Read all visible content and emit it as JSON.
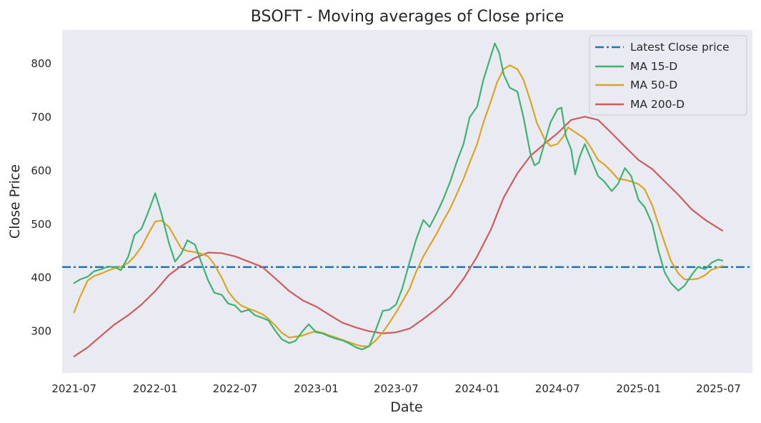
{
  "chart_data": {
    "type": "line",
    "title": "BSOFT - Moving averages of Close price",
    "xlabel": "Date",
    "ylabel": "Close Price",
    "xlim": [
      "2021-06-04",
      "2025-09-16"
    ],
    "ylim": [
      222,
      863
    ],
    "grid": false,
    "legend_position": "top-right",
    "x_ticks": [
      "2021-07",
      "2022-01",
      "2022-07",
      "2023-01",
      "2023-07",
      "2024-01",
      "2024-07",
      "2025-01",
      "2025-07"
    ],
    "y_ticks": [
      300,
      400,
      500,
      600,
      700,
      800
    ],
    "reference_line": {
      "name": "Latest Close price",
      "value": 420,
      "color": "#1f77b4",
      "style": "dash-dot"
    },
    "series": [
      {
        "name": "MA 15-D",
        "color": "#3cb371",
        "points": [
          [
            "2021-07-01",
            390
          ],
          [
            "2021-07-15",
            397
          ],
          [
            "2021-08-01",
            402
          ],
          [
            "2021-08-15",
            412
          ],
          [
            "2021-09-01",
            416
          ],
          [
            "2021-09-15",
            421
          ],
          [
            "2021-10-01",
            420
          ],
          [
            "2021-10-15",
            414
          ],
          [
            "2021-11-01",
            440
          ],
          [
            "2021-11-15",
            480
          ],
          [
            "2021-12-01",
            492
          ],
          [
            "2021-12-15",
            520
          ],
          [
            "2022-01-01",
            558
          ],
          [
            "2022-01-15",
            520
          ],
          [
            "2022-02-01",
            465
          ],
          [
            "2022-02-15",
            430
          ],
          [
            "2022-03-01",
            445
          ],
          [
            "2022-03-15",
            470
          ],
          [
            "2022-04-01",
            462
          ],
          [
            "2022-04-15",
            430
          ],
          [
            "2022-05-01",
            395
          ],
          [
            "2022-05-15",
            372
          ],
          [
            "2022-06-01",
            368
          ],
          [
            "2022-06-15",
            352
          ],
          [
            "2022-07-01",
            348
          ],
          [
            "2022-07-15",
            336
          ],
          [
            "2022-08-01",
            340
          ],
          [
            "2022-08-15",
            330
          ],
          [
            "2022-09-01",
            325
          ],
          [
            "2022-09-15",
            320
          ],
          [
            "2022-10-01",
            300
          ],
          [
            "2022-10-15",
            285
          ],
          [
            "2022-11-01",
            278
          ],
          [
            "2022-11-15",
            282
          ],
          [
            "2022-12-01",
            300
          ],
          [
            "2022-12-15",
            313
          ],
          [
            "2023-01-01",
            298
          ],
          [
            "2023-01-15",
            296
          ],
          [
            "2023-02-01",
            290
          ],
          [
            "2023-02-15",
            286
          ],
          [
            "2023-03-01",
            283
          ],
          [
            "2023-03-15",
            278
          ],
          [
            "2023-04-01",
            270
          ],
          [
            "2023-04-15",
            266
          ],
          [
            "2023-05-01",
            272
          ],
          [
            "2023-05-15",
            300
          ],
          [
            "2023-06-01",
            338
          ],
          [
            "2023-06-15",
            340
          ],
          [
            "2023-07-01",
            350
          ],
          [
            "2023-07-15",
            380
          ],
          [
            "2023-08-01",
            430
          ],
          [
            "2023-08-15",
            470
          ],
          [
            "2023-09-01",
            508
          ],
          [
            "2023-09-15",
            495
          ],
          [
            "2023-10-01",
            520
          ],
          [
            "2023-10-15",
            545
          ],
          [
            "2023-11-01",
            580
          ],
          [
            "2023-11-15",
            615
          ],
          [
            "2023-12-01",
            650
          ],
          [
            "2023-12-15",
            700
          ],
          [
            "2024-01-01",
            720
          ],
          [
            "2024-01-15",
            770
          ],
          [
            "2024-02-01",
            815
          ],
          [
            "2024-02-10",
            838
          ],
          [
            "2024-02-20",
            820
          ],
          [
            "2024-03-01",
            780
          ],
          [
            "2024-03-15",
            755
          ],
          [
            "2024-04-01",
            748
          ],
          [
            "2024-04-15",
            700
          ],
          [
            "2024-05-01",
            630
          ],
          [
            "2024-05-10",
            610
          ],
          [
            "2024-05-20",
            615
          ],
          [
            "2024-06-01",
            650
          ],
          [
            "2024-06-15",
            690
          ],
          [
            "2024-07-01",
            715
          ],
          [
            "2024-07-10",
            718
          ],
          [
            "2024-07-20",
            665
          ],
          [
            "2024-08-01",
            640
          ],
          [
            "2024-08-10",
            593
          ],
          [
            "2024-08-20",
            625
          ],
          [
            "2024-09-01",
            650
          ],
          [
            "2024-09-15",
            622
          ],
          [
            "2024-10-01",
            590
          ],
          [
            "2024-10-15",
            580
          ],
          [
            "2024-11-01",
            562
          ],
          [
            "2024-11-15",
            575
          ],
          [
            "2024-12-01",
            605
          ],
          [
            "2024-12-15",
            590
          ],
          [
            "2025-01-01",
            545
          ],
          [
            "2025-01-15",
            532
          ],
          [
            "2025-02-01",
            500
          ],
          [
            "2025-02-15",
            450
          ],
          [
            "2025-03-01",
            410
          ],
          [
            "2025-03-15",
            390
          ],
          [
            "2025-04-01",
            376
          ],
          [
            "2025-04-15",
            385
          ],
          [
            "2025-05-01",
            405
          ],
          [
            "2025-05-15",
            420
          ],
          [
            "2025-06-01",
            416
          ],
          [
            "2025-06-15",
            428
          ],
          [
            "2025-06-30",
            434
          ],
          [
            "2025-07-10",
            432
          ]
        ]
      },
      {
        "name": "MA 50-D",
        "color": "#daa520",
        "points": [
          [
            "2021-07-01",
            335
          ],
          [
            "2021-07-15",
            365
          ],
          [
            "2021-08-01",
            395
          ],
          [
            "2021-08-15",
            403
          ],
          [
            "2021-09-01",
            408
          ],
          [
            "2021-09-15",
            413
          ],
          [
            "2021-10-01",
            418
          ],
          [
            "2021-10-15",
            420
          ],
          [
            "2021-11-01",
            428
          ],
          [
            "2021-11-15",
            440
          ],
          [
            "2021-12-01",
            458
          ],
          [
            "2021-12-15",
            480
          ],
          [
            "2022-01-01",
            505
          ],
          [
            "2022-01-15",
            507
          ],
          [
            "2022-02-01",
            495
          ],
          [
            "2022-02-15",
            475
          ],
          [
            "2022-03-01",
            455
          ],
          [
            "2022-03-15",
            450
          ],
          [
            "2022-04-01",
            448
          ],
          [
            "2022-04-15",
            445
          ],
          [
            "2022-05-01",
            440
          ],
          [
            "2022-05-15",
            425
          ],
          [
            "2022-06-01",
            400
          ],
          [
            "2022-06-15",
            375
          ],
          [
            "2022-07-01",
            358
          ],
          [
            "2022-07-15",
            348
          ],
          [
            "2022-08-01",
            342
          ],
          [
            "2022-08-15",
            338
          ],
          [
            "2022-09-01",
            332
          ],
          [
            "2022-09-15",
            323
          ],
          [
            "2022-10-01",
            310
          ],
          [
            "2022-10-15",
            297
          ],
          [
            "2022-11-01",
            288
          ],
          [
            "2022-11-15",
            290
          ],
          [
            "2022-12-01",
            292
          ],
          [
            "2022-12-15",
            296
          ],
          [
            "2023-01-01",
            300
          ],
          [
            "2023-01-15",
            297
          ],
          [
            "2023-02-01",
            292
          ],
          [
            "2023-02-15",
            288
          ],
          [
            "2023-03-01",
            284
          ],
          [
            "2023-03-15",
            280
          ],
          [
            "2023-04-01",
            275
          ],
          [
            "2023-04-15",
            272
          ],
          [
            "2023-05-01",
            272
          ],
          [
            "2023-05-15",
            282
          ],
          [
            "2023-06-01",
            298
          ],
          [
            "2023-06-15",
            315
          ],
          [
            "2023-07-01",
            335
          ],
          [
            "2023-07-15",
            355
          ],
          [
            "2023-08-01",
            380
          ],
          [
            "2023-08-15",
            410
          ],
          [
            "2023-09-01",
            440
          ],
          [
            "2023-09-15",
            460
          ],
          [
            "2023-10-01",
            482
          ],
          [
            "2023-10-15",
            505
          ],
          [
            "2023-11-01",
            530
          ],
          [
            "2023-11-15",
            555
          ],
          [
            "2023-12-01",
            585
          ],
          [
            "2023-12-15",
            615
          ],
          [
            "2024-01-01",
            650
          ],
          [
            "2024-01-15",
            690
          ],
          [
            "2024-02-01",
            730
          ],
          [
            "2024-02-15",
            765
          ],
          [
            "2024-03-01",
            790
          ],
          [
            "2024-03-15",
            797
          ],
          [
            "2024-04-01",
            790
          ],
          [
            "2024-04-15",
            770
          ],
          [
            "2024-05-01",
            730
          ],
          [
            "2024-05-15",
            690
          ],
          [
            "2024-06-01",
            660
          ],
          [
            "2024-06-15",
            646
          ],
          [
            "2024-07-01",
            650
          ],
          [
            "2024-07-15",
            665
          ],
          [
            "2024-07-25",
            681
          ],
          [
            "2024-08-10",
            672
          ],
          [
            "2024-09-01",
            660
          ],
          [
            "2024-09-15",
            643
          ],
          [
            "2024-10-01",
            620
          ],
          [
            "2024-10-15",
            612
          ],
          [
            "2024-11-01",
            598
          ],
          [
            "2024-11-15",
            585
          ],
          [
            "2024-12-01",
            583
          ],
          [
            "2024-12-15",
            580
          ],
          [
            "2025-01-01",
            575
          ],
          [
            "2025-01-15",
            565
          ],
          [
            "2025-02-01",
            535
          ],
          [
            "2025-02-15",
            500
          ],
          [
            "2025-03-01",
            465
          ],
          [
            "2025-03-15",
            432
          ],
          [
            "2025-04-01",
            408
          ],
          [
            "2025-04-15",
            397
          ],
          [
            "2025-05-01",
            397
          ],
          [
            "2025-05-15",
            398
          ],
          [
            "2025-06-01",
            405
          ],
          [
            "2025-06-15",
            415
          ],
          [
            "2025-07-10",
            422
          ]
        ]
      },
      {
        "name": "MA 200-D",
        "color": "#cd5c5c",
        "points": [
          [
            "2021-07-01",
            253
          ],
          [
            "2021-08-01",
            270
          ],
          [
            "2021-09-01",
            292
          ],
          [
            "2021-10-01",
            313
          ],
          [
            "2021-11-01",
            330
          ],
          [
            "2021-12-01",
            350
          ],
          [
            "2022-01-01",
            375
          ],
          [
            "2022-02-01",
            405
          ],
          [
            "2022-03-01",
            422
          ],
          [
            "2022-04-01",
            437
          ],
          [
            "2022-05-01",
            447
          ],
          [
            "2022-06-01",
            446
          ],
          [
            "2022-07-01",
            440
          ],
          [
            "2022-08-01",
            430
          ],
          [
            "2022-09-01",
            420
          ],
          [
            "2022-10-01",
            398
          ],
          [
            "2022-11-01",
            375
          ],
          [
            "2022-12-01",
            358
          ],
          [
            "2023-01-01",
            346
          ],
          [
            "2023-02-01",
            330
          ],
          [
            "2023-03-01",
            316
          ],
          [
            "2023-04-01",
            307
          ],
          [
            "2023-05-01",
            300
          ],
          [
            "2023-06-01",
            296
          ],
          [
            "2023-07-01",
            298
          ],
          [
            "2023-08-01",
            305
          ],
          [
            "2023-09-01",
            323
          ],
          [
            "2023-10-01",
            342
          ],
          [
            "2023-11-01",
            365
          ],
          [
            "2023-12-01",
            398
          ],
          [
            "2024-01-01",
            440
          ],
          [
            "2024-02-01",
            490
          ],
          [
            "2024-03-01",
            550
          ],
          [
            "2024-04-01",
            595
          ],
          [
            "2024-05-01",
            628
          ],
          [
            "2024-06-01",
            650
          ],
          [
            "2024-07-01",
            670
          ],
          [
            "2024-08-01",
            695
          ],
          [
            "2024-09-01",
            701
          ],
          [
            "2024-10-01",
            695
          ],
          [
            "2024-11-01",
            670
          ],
          [
            "2024-12-01",
            645
          ],
          [
            "2025-01-01",
            620
          ],
          [
            "2025-02-01",
            603
          ],
          [
            "2025-03-01",
            580
          ],
          [
            "2025-04-01",
            555
          ],
          [
            "2025-05-01",
            528
          ],
          [
            "2025-06-01",
            508
          ],
          [
            "2025-07-10",
            488
          ]
        ]
      }
    ]
  }
}
